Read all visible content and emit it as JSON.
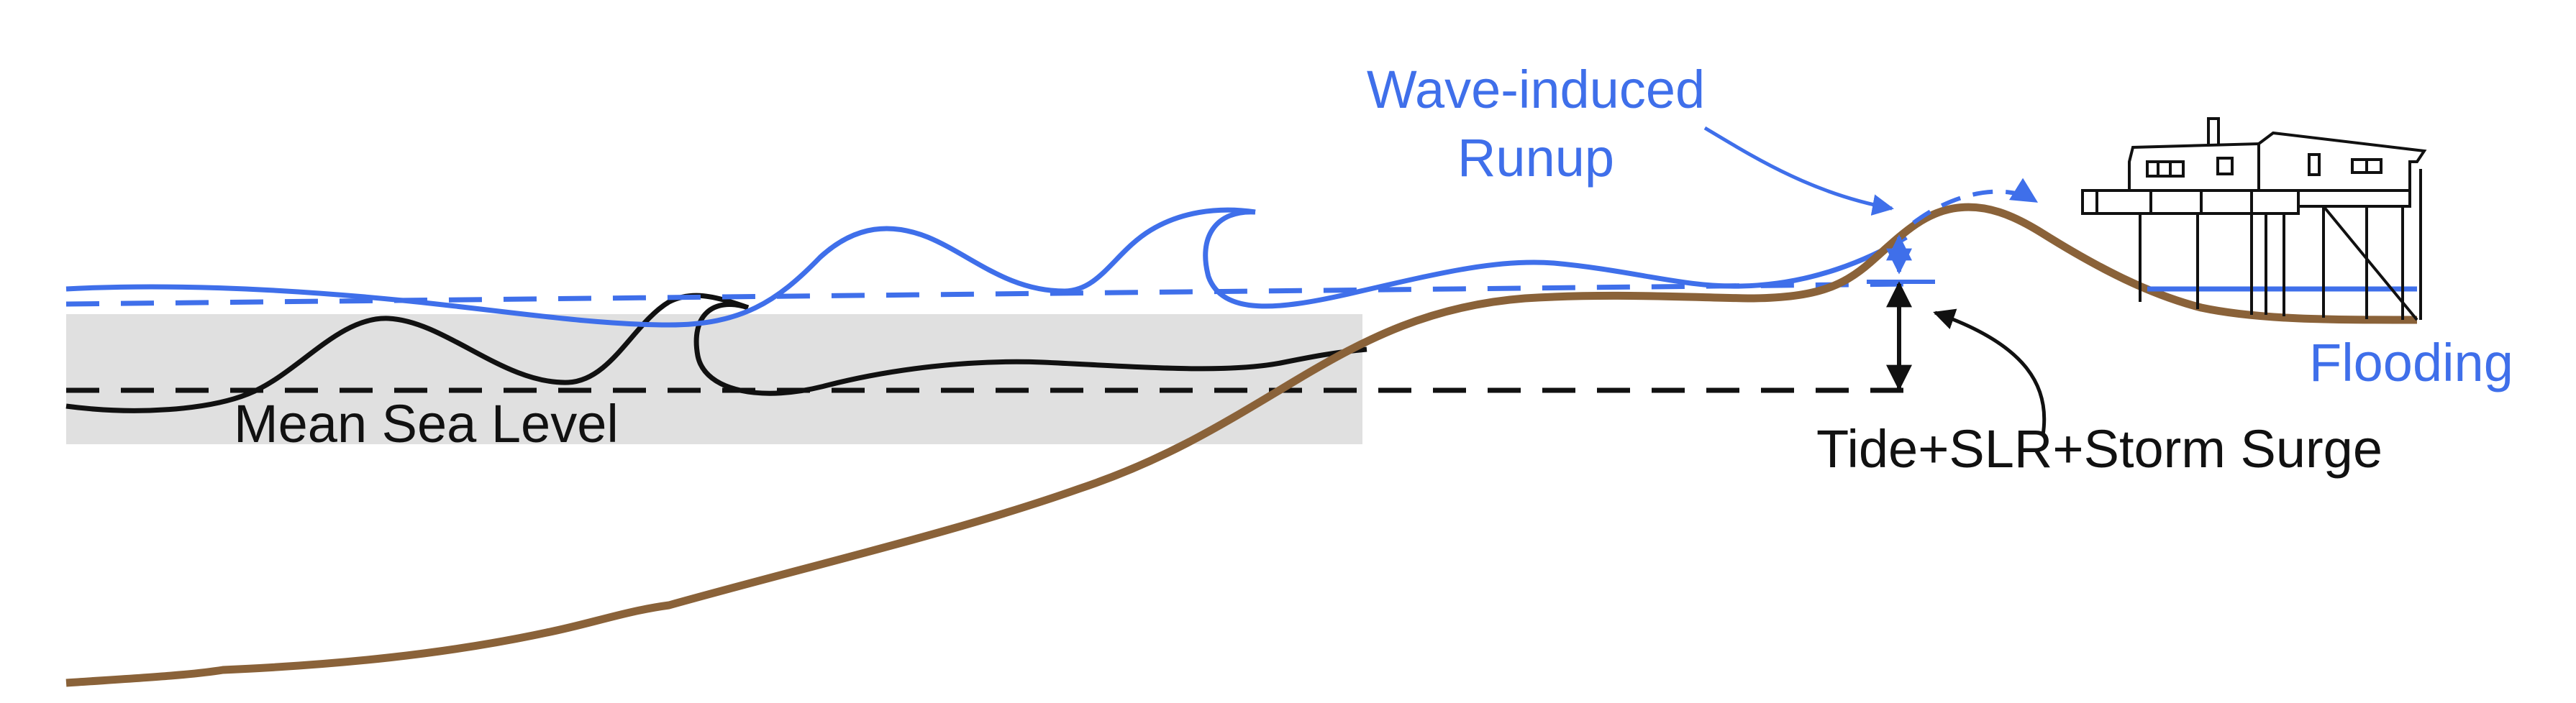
{
  "labels": {
    "wave_runup_line1": "Wave-induced",
    "wave_runup_line2": "Runup",
    "flooding": "Flooding",
    "mean_sea_level": "Mean Sea Level",
    "surge_components": "Tide+SLR+Storm Surge"
  },
  "colors": {
    "water": "#3f6fea",
    "ground": "#8a6239",
    "annotation": "#111111",
    "sea_band": "#e0e0e0",
    "background": "#ffffff"
  }
}
